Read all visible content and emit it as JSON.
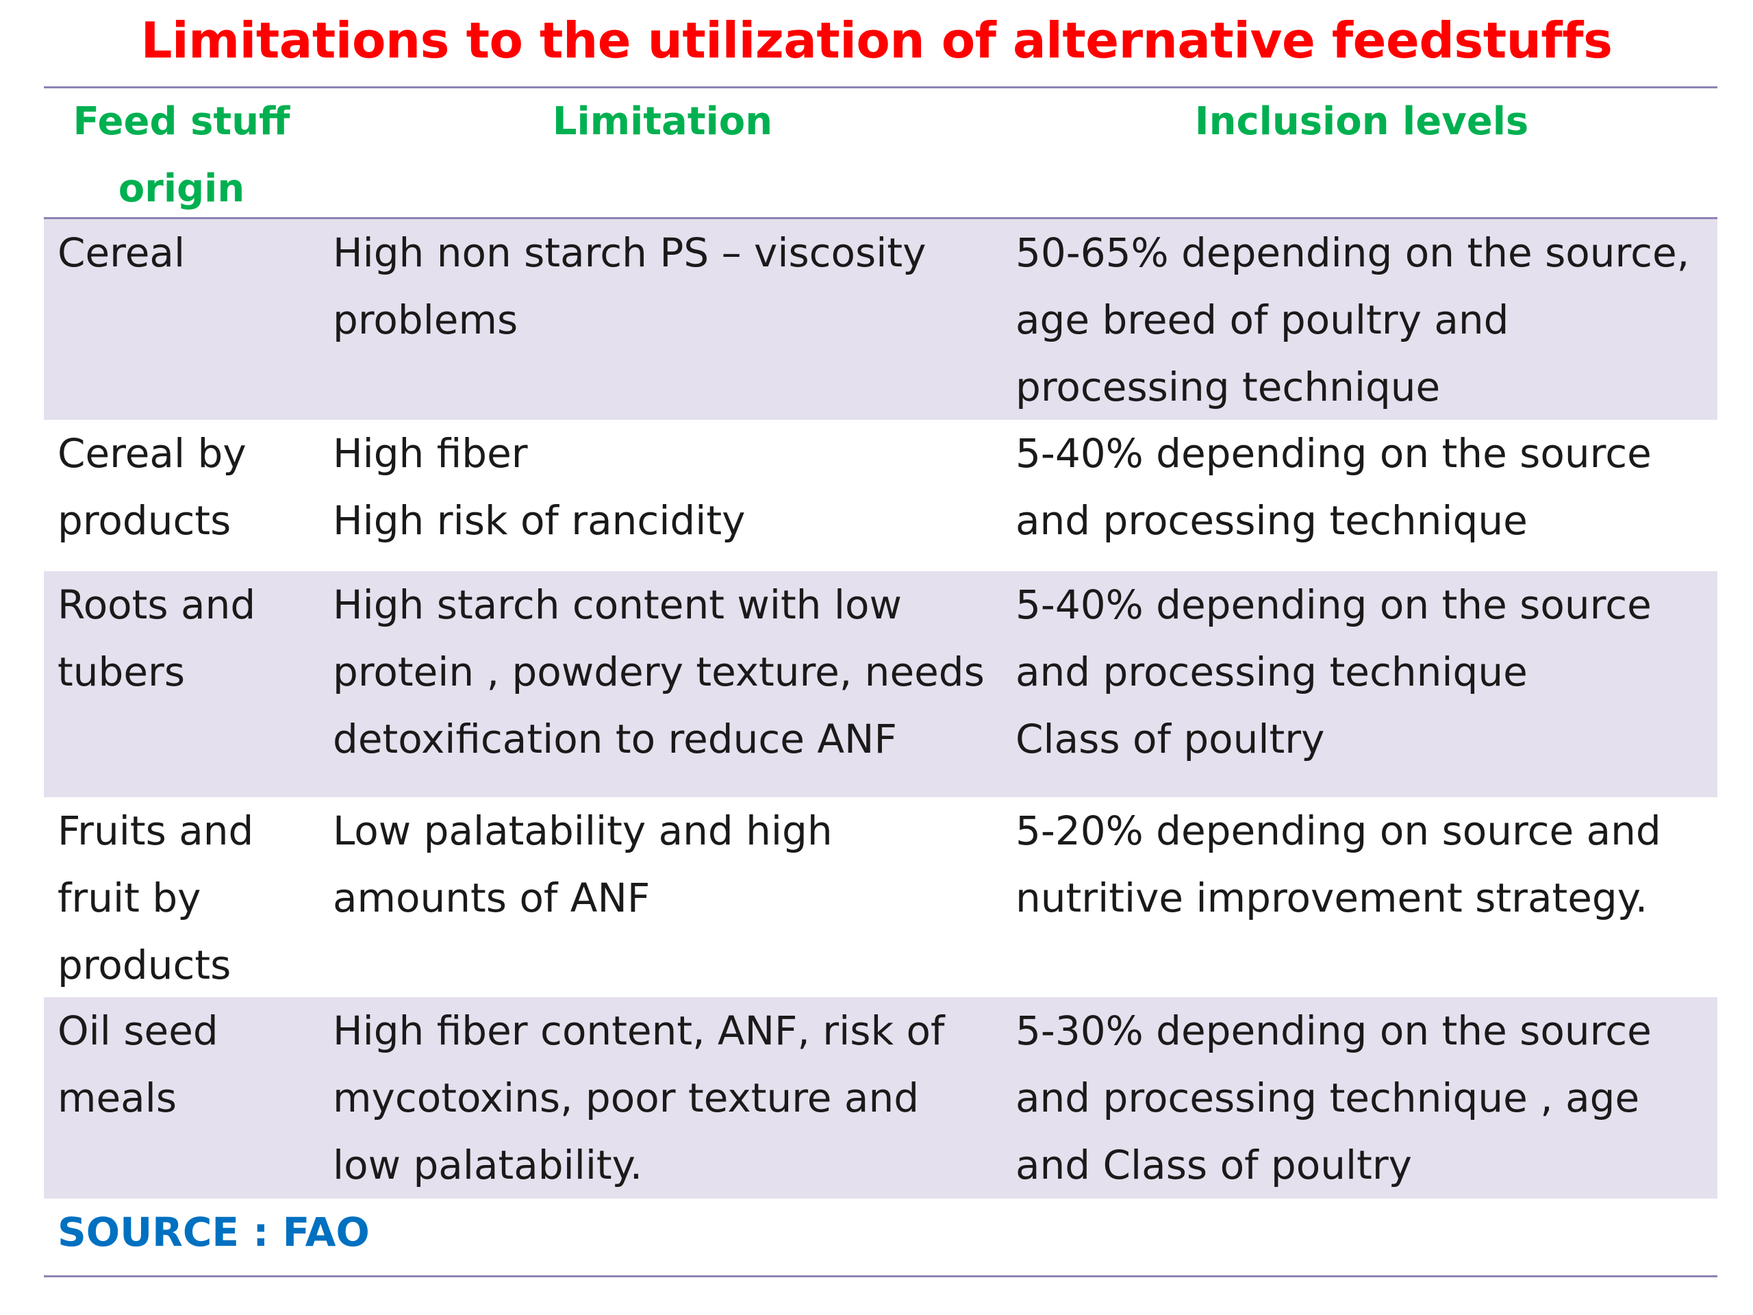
{
  "title": "Limitations to the utilization of alternative feedstuffs",
  "colors": {
    "title": "#ff0000",
    "header": "#00b050",
    "source": "#0070c0",
    "shaded_row": "#e5e0ed",
    "rule": "#8f83b5"
  },
  "table": {
    "headers": [
      "Feed stuff\norigin",
      "Limitation",
      "Inclusion levels"
    ],
    "rows": [
      {
        "origin": "Cereal",
        "limitation": "High non starch PS – viscosity\nproblems",
        "inclusion": "50-65% depending on the source,\nage breed of poultry and\nprocessing technique"
      },
      {
        "origin": "Cereal by\nproducts",
        "limitation": "High fiber\nHigh risk of rancidity",
        "inclusion": "5-40% depending on the source\nand processing technique"
      },
      {
        "origin": "Roots and\ntubers",
        "limitation": "High starch content with low\nprotein , powdery texture, needs\ndetoxification to reduce ANF",
        "inclusion": "5-40% depending on the source\nand processing technique\nClass of poultry"
      },
      {
        "origin": "Fruits and\nfruit by\nproducts",
        "limitation": "Low palatability and high\namounts of ANF",
        "inclusion": "5-20% depending on source and\nnutritive improvement strategy."
      },
      {
        "origin": "Oil seed\nmeals",
        "limitation": "High fiber content, ANF, risk of\nmycotoxins, poor texture and\nlow palatability.",
        "inclusion": "5-30% depending on the source\nand processing technique , age\nand Class of poultry"
      }
    ]
  },
  "source": "SOURCE : FAO"
}
